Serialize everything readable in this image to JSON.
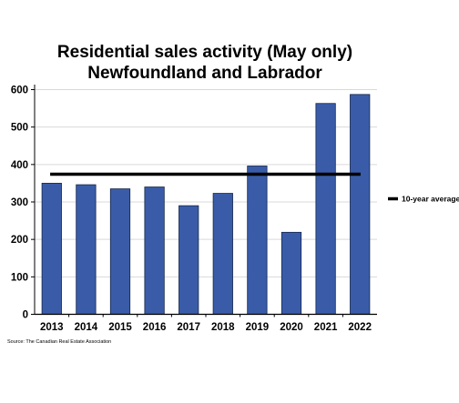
{
  "chart_data": {
    "type": "bar",
    "title": "Residential sales activity (May only)",
    "subtitle": "Newfoundland and Labrador",
    "categories": [
      "2013",
      "2014",
      "2015",
      "2016",
      "2017",
      "2018",
      "2019",
      "2020",
      "2021",
      "2022"
    ],
    "series": [
      {
        "values": [
          350,
          346,
          335,
          340,
          290,
          323,
          396,
          219,
          563,
          587
        ]
      }
    ],
    "reference_line": {
      "name": "10-year average",
      "value": 374
    },
    "ylim": [
      0,
      600
    ],
    "yticks": [
      "0",
      "100",
      "200",
      "300",
      "400",
      "500",
      "600"
    ],
    "xlabel": "",
    "ylabel": "",
    "grid": true,
    "legend_position": "right",
    "bar_color": "#3a5ca8",
    "bar_edge_color": "#13254a",
    "line_color": "#000000",
    "source": "Source: The Canadian Real Estate Association"
  }
}
